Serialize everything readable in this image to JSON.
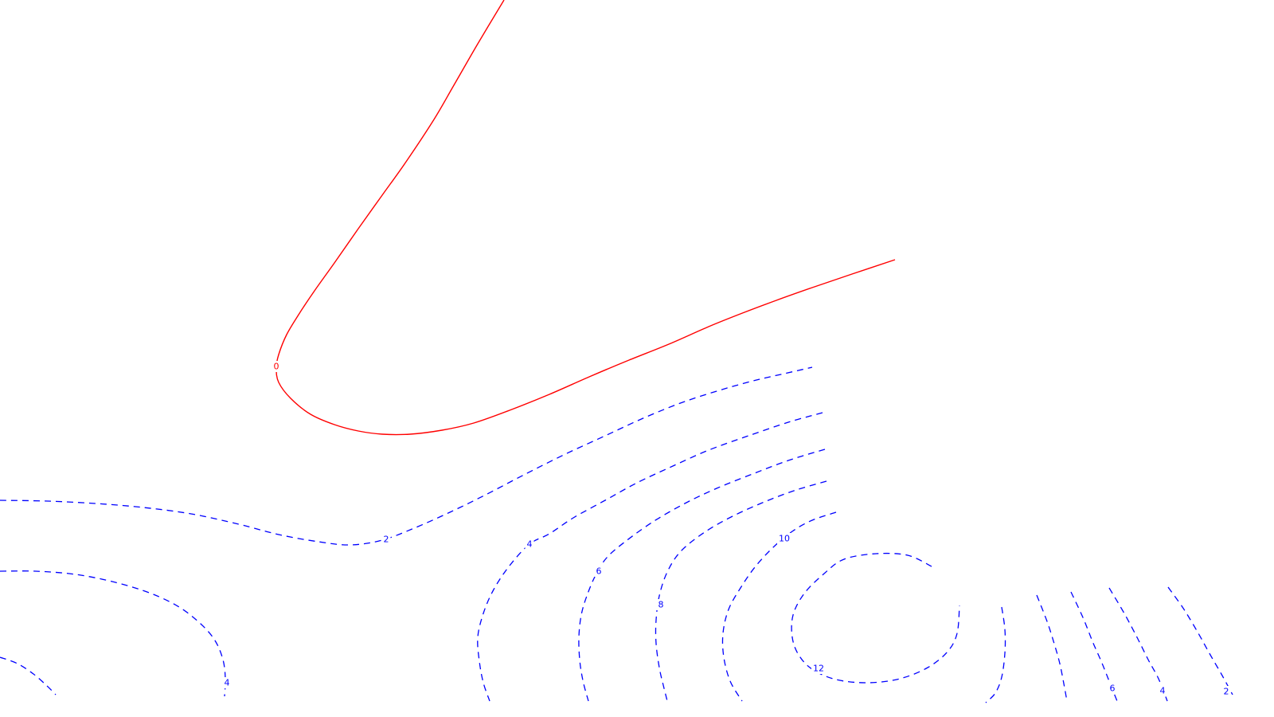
{
  "chart_data": {
    "type": "contour",
    "title": "",
    "xlabel": "",
    "ylabel": "",
    "axes_visible": false,
    "grid": false,
    "legend": "none",
    "colors": {
      "zero_level": "#ff0000",
      "positive_levels": "#0000ff",
      "background": "#ffffff"
    },
    "line_styles": {
      "zero_level": "solid",
      "positive_levels": "dashed"
    },
    "levels": [
      {
        "value": 0,
        "label": "0",
        "style": "zero",
        "paths": [
          [
            [
              633,
              0
            ],
            [
              600,
              55
            ],
            [
              570,
              107
            ],
            [
              545,
              150
            ],
            [
              510,
              203
            ],
            [
              480,
              245
            ],
            [
              450,
              287
            ],
            [
              420,
              330
            ],
            [
              395,
              365
            ],
            [
              375,
              395
            ],
            [
              360,
              420
            ],
            [
              350,
              445
            ],
            [
              347,
              462
            ],
            [
              350,
              480
            ],
            [
              365,
              500
            ],
            [
              390,
              520
            ],
            [
              420,
              533
            ],
            [
              450,
              541
            ],
            [
              480,
              545
            ],
            [
              515,
              545
            ],
            [
              555,
              540
            ],
            [
              595,
              531
            ],
            [
              640,
              515
            ],
            [
              690,
              495
            ],
            [
              740,
              473
            ],
            [
              790,
              452
            ],
            [
              840,
              432
            ],
            [
              890,
              410
            ],
            [
              935,
              392
            ],
            [
              975,
              377
            ],
            [
              1020,
              361
            ],
            [
              1070,
              344
            ],
            [
              1124,
              326
            ]
          ]
        ],
        "label_positions": [
          [
            347,
            460
          ]
        ]
      },
      {
        "value": 2,
        "label": "2",
        "style": "positive",
        "paths": [
          [
            [
              0,
              628
            ],
            [
              60,
              629
            ],
            [
              120,
              632
            ],
            [
              180,
              637
            ],
            [
              240,
              645
            ],
            [
              300,
              658
            ],
            [
              350,
              671
            ],
            [
              400,
              680
            ],
            [
              440,
              684
            ],
            [
              480,
              678
            ],
            [
              520,
              663
            ],
            [
              565,
              643
            ],
            [
              610,
              621
            ],
            [
              660,
              595
            ],
            [
              710,
              570
            ],
            [
              760,
              547
            ],
            [
              810,
              524
            ],
            [
              860,
              504
            ],
            [
              910,
              488
            ],
            [
              950,
              477
            ],
            [
              985,
              469
            ],
            [
              1020,
              461
            ]
          ],
          [
            [
              0,
              717
            ],
            [
              45,
              717
            ],
            [
              95,
              721
            ],
            [
              145,
              731
            ],
            [
              190,
              745
            ],
            [
              225,
              762
            ],
            [
              252,
              783
            ],
            [
              270,
              804
            ],
            [
              280,
              828
            ],
            [
              283,
              852
            ],
            [
              282,
              874
            ]
          ],
          [
            [
              0,
              825
            ],
            [
              22,
              833
            ],
            [
              42,
              846
            ],
            [
              58,
              860
            ],
            [
              70,
              872
            ]
          ],
          [
            [
              1467,
              737
            ],
            [
              1487,
              765
            ],
            [
              1505,
              795
            ],
            [
              1520,
              822
            ],
            [
              1535,
              848
            ],
            [
              1548,
              872
            ]
          ]
        ],
        "label_positions": [
          [
            485,
            677
          ],
          [
            1540,
            868
          ]
        ]
      },
      {
        "value": 4,
        "label": "4",
        "style": "positive",
        "paths": [
          [
            [
              1033,
              518
            ],
            [
              990,
              530
            ],
            [
              940,
              547
            ],
            [
              890,
              565
            ],
            [
              845,
              585
            ],
            [
              800,
              606
            ],
            [
              760,
              628
            ],
            [
              720,
              650
            ],
            [
              690,
              670
            ],
            [
              665,
              683
            ],
            [
              640,
              710
            ],
            [
              620,
              740
            ],
            [
              607,
              770
            ],
            [
              600,
              800
            ],
            [
              602,
              830
            ],
            [
              607,
              857
            ],
            [
              615,
              880
            ]
          ],
          [
            [
              1393,
              738
            ],
            [
              1412,
              770
            ],
            [
              1428,
              800
            ],
            [
              1442,
              828
            ],
            [
              1455,
              852
            ],
            [
              1466,
              880
            ]
          ]
        ],
        "label_positions": [
          [
            665,
            683
          ],
          [
            285,
            857
          ],
          [
            1460,
            867
          ]
        ]
      },
      {
        "value": 6,
        "label": "6",
        "style": "positive",
        "paths": [
          [
            [
              1036,
              564
            ],
            [
              990,
              578
            ],
            [
              945,
              595
            ],
            [
              900,
              613
            ],
            [
              860,
              632
            ],
            [
              820,
              655
            ],
            [
              785,
              680
            ],
            [
              762,
              700
            ],
            [
              748,
              722
            ],
            [
              737,
              748
            ],
            [
              730,
              772
            ],
            [
              727,
              800
            ],
            [
              728,
              828
            ],
            [
              732,
              854
            ],
            [
              739,
              880
            ]
          ],
          [
            [
              1345,
              743
            ],
            [
              1360,
              775
            ],
            [
              1372,
              805
            ],
            [
              1383,
              830
            ],
            [
              1393,
              855
            ],
            [
              1403,
              880
            ]
          ]
        ],
        "label_positions": [
          [
            752,
            717
          ],
          [
            1397,
            864
          ]
        ]
      },
      {
        "value": 8,
        "label": "8",
        "style": "positive",
        "paths": [
          [
            [
              1038,
              604
            ],
            [
              1000,
              615
            ],
            [
              960,
              630
            ],
            [
              920,
              648
            ],
            [
              885,
              668
            ],
            [
              855,
              692
            ],
            [
              838,
              718
            ],
            [
              828,
              748
            ],
            [
              824,
              778
            ],
            [
              824,
              808
            ],
            [
              828,
              838
            ],
            [
              833,
              860
            ],
            [
              838,
              880
            ]
          ],
          [
            [
              1302,
              747
            ],
            [
              1315,
              780
            ],
            [
              1324,
              808
            ],
            [
              1331,
              833
            ],
            [
              1336,
              858
            ],
            [
              1340,
              880
            ]
          ]
        ],
        "label_positions": [
          [
            830,
            759
          ]
        ]
      },
      {
        "value": 10,
        "label": "10",
        "style": "positive",
        "paths": [
          [
            [
              1050,
              643
            ],
            [
              1020,
              653
            ],
            [
              995,
              667
            ],
            [
              970,
              688
            ],
            [
              948,
              712
            ],
            [
              930,
              738
            ],
            [
              915,
              765
            ],
            [
              908,
              795
            ],
            [
              909,
              825
            ],
            [
              917,
              855
            ],
            [
              932,
              880
            ]
          ],
          [
            [
              1258,
              762
            ],
            [
              1262,
              790
            ],
            [
              1262,
              820
            ],
            [
              1258,
              850
            ],
            [
              1250,
              870
            ],
            [
              1238,
              882
            ]
          ]
        ],
        "label_positions": [
          [
            985,
            676
          ]
        ]
      },
      {
        "value": 12,
        "label": "12",
        "style": "positive",
        "paths": [
          [
            [
              1170,
              711
            ],
            [
              1140,
              697
            ],
            [
              1100,
              695
            ],
            [
              1060,
              702
            ],
            [
              1035,
              720
            ],
            [
              1010,
              745
            ],
            [
              996,
              772
            ],
            [
              995,
              800
            ],
            [
              1003,
              822
            ],
            [
              1020,
              840
            ],
            [
              1050,
              853
            ],
            [
              1090,
              857
            ],
            [
              1130,
              852
            ],
            [
              1165,
              838
            ],
            [
              1190,
              818
            ],
            [
              1202,
              795
            ],
            [
              1205,
              760
            ]
          ]
        ],
        "label_positions": [
          [
            1028,
            839
          ]
        ]
      }
    ]
  }
}
